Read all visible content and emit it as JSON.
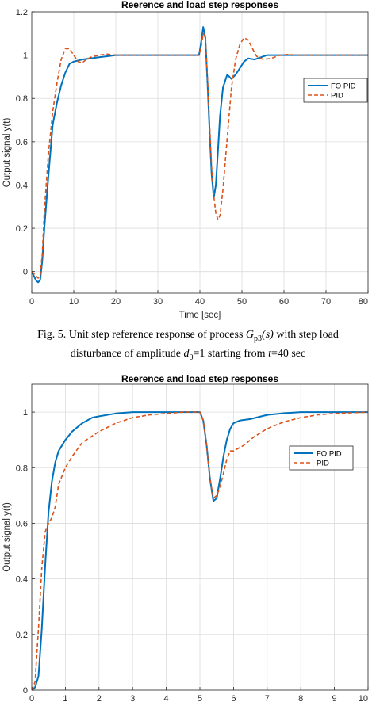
{
  "caption": {
    "line1_prefix": "Fig. 5.   Unit step reference response of process ",
    "proc_sym": "G",
    "proc_sub": "p3",
    "proc_arg": "(s)",
    "line1_suffix": " with step load",
    "line2_prefix": "disturbance of amplitude ",
    "amp_sym": "d",
    "amp_sub": "0",
    "line2_mid": "=1 starting from ",
    "time_sym": "t",
    "line2_suffix": "=40 sec"
  },
  "colors": {
    "fo_pid": "#0072BD",
    "pid": "#D95319",
    "grid": "#dcdcdc",
    "axis": "#262626"
  },
  "chart_data": [
    {
      "type": "line",
      "title": "Reerence and load step responses",
      "xlabel": "Time [sec]",
      "ylabel": "Output signal y(t)",
      "xlim": [
        0,
        80
      ],
      "ylim": [
        -0.1,
        1.2
      ],
      "xticks": [
        0,
        10,
        20,
        30,
        40,
        50,
        60,
        70,
        80
      ],
      "xtick_labels": [
        "0",
        "10",
        "20",
        "30",
        "40",
        "50",
        "60",
        "70",
        "80"
      ],
      "yticks": [
        0,
        0.2,
        0.4,
        0.6,
        0.8,
        1,
        1.2
      ],
      "ytick_labels": [
        "0",
        "0.2",
        "0.4",
        "0.6",
        "0.8",
        "1",
        "1.2"
      ],
      "grid": true,
      "legend_position": "right",
      "series": [
        {
          "name": "FO PID",
          "style": "solid",
          "color": "#0072BD",
          "x": [
            0,
            1,
            1.5,
            2,
            2.5,
            3,
            4,
            5,
            6,
            7,
            8,
            9,
            10,
            12,
            14,
            16,
            18,
            20,
            25,
            30,
            35,
            39.8,
            40.3,
            40.8,
            41.3,
            41.8,
            42.3,
            42.8,
            43.3,
            43.8,
            44.3,
            44.8,
            45.5,
            46.5,
            47.5,
            48.5,
            49.5,
            50.5,
            51.5,
            53,
            54.5,
            56,
            58,
            60,
            65,
            70,
            75,
            80
          ],
          "y": [
            0,
            -0.04,
            -0.05,
            -0.04,
            0.05,
            0.2,
            0.45,
            0.68,
            0.78,
            0.86,
            0.92,
            0.96,
            0.97,
            0.98,
            0.985,
            0.99,
            0.995,
            1,
            1,
            1,
            1,
            1,
            1.06,
            1.13,
            1.08,
            0.88,
            0.65,
            0.45,
            0.34,
            0.4,
            0.56,
            0.72,
            0.85,
            0.91,
            0.89,
            0.91,
            0.94,
            0.97,
            0.985,
            0.98,
            0.99,
            1.0,
            1.0,
            1,
            1,
            1,
            1,
            1
          ]
        },
        {
          "name": "PID",
          "style": "dashed",
          "color": "#D95319",
          "x": [
            0,
            1,
            1.5,
            2,
            2.5,
            3,
            4,
            5,
            6,
            7,
            8,
            9,
            10,
            11,
            12,
            13,
            14,
            16,
            18,
            20,
            22,
            25,
            30,
            35,
            39.8,
            40.3,
            40.8,
            41.3,
            41.8,
            42.3,
            42.8,
            43.3,
            43.8,
            44.3,
            44.8,
            45.5,
            46.5,
            47.5,
            48.5,
            49.5,
            50.5,
            51.5,
            52.5,
            53.5,
            55,
            57,
            59,
            61,
            63,
            65,
            70,
            75,
            80
          ],
          "y": [
            0,
            -0.02,
            -0.03,
            -0.02,
            0.08,
            0.28,
            0.55,
            0.74,
            0.87,
            0.98,
            1.03,
            1.03,
            1.0,
            0.97,
            0.965,
            0.98,
            0.99,
            1.0,
            1.005,
            1.0,
            1.0,
            1,
            1,
            1,
            1,
            1.04,
            1.1,
            1.08,
            0.9,
            0.68,
            0.48,
            0.35,
            0.27,
            0.24,
            0.26,
            0.38,
            0.62,
            0.85,
            0.98,
            1.05,
            1.08,
            1.07,
            1.03,
            0.995,
            0.98,
            0.985,
            1.0,
            1.003,
            1.0,
            1,
            1,
            1,
            1
          ]
        }
      ]
    },
    {
      "type": "line",
      "title": "Reerence and load step responses",
      "xlabel": "",
      "ylabel": "Output signal y(t)",
      "xlim": [
        0,
        10
      ],
      "ylim": [
        0,
        1.1
      ],
      "xticks": [
        0,
        1,
        2,
        3,
        4,
        5,
        6,
        7,
        8,
        9,
        10
      ],
      "xtick_labels": [
        "0",
        "1",
        "2",
        "3",
        "4",
        "5",
        "6",
        "7",
        "8",
        "9",
        "10"
      ],
      "yticks": [
        0,
        0.2,
        0.4,
        0.6,
        0.8,
        1
      ],
      "ytick_labels": [
        "0",
        "0.2",
        "0.4",
        "0.6",
        "0.8",
        "1"
      ],
      "grid": true,
      "legend_position": "right",
      "series": [
        {
          "name": "FO PID",
          "style": "solid",
          "color": "#0072BD",
          "x": [
            0,
            0.1,
            0.2,
            0.3,
            0.4,
            0.5,
            0.6,
            0.7,
            0.8,
            1.0,
            1.2,
            1.5,
            1.8,
            2.0,
            2.5,
            3.0,
            3.5,
            4.0,
            4.5,
            5.0,
            5.1,
            5.2,
            5.3,
            5.4,
            5.5,
            5.6,
            5.7,
            5.8,
            5.9,
            6.0,
            6.2,
            6.5,
            7.0,
            7.5,
            8.0,
            9.0,
            10.0
          ],
          "y": [
            0,
            0.01,
            0.05,
            0.22,
            0.45,
            0.64,
            0.75,
            0.82,
            0.86,
            0.9,
            0.93,
            0.96,
            0.98,
            0.985,
            0.995,
            1.0,
            1.0,
            1.0,
            1.0,
            1.0,
            0.97,
            0.88,
            0.76,
            0.68,
            0.69,
            0.76,
            0.84,
            0.9,
            0.94,
            0.96,
            0.97,
            0.975,
            0.99,
            0.996,
            1.0,
            1.0,
            1.0
          ]
        },
        {
          "name": "PID",
          "style": "dashed",
          "color": "#D95319",
          "x": [
            0,
            0.1,
            0.2,
            0.3,
            0.4,
            0.5,
            0.6,
            0.7,
            0.8,
            1.0,
            1.2,
            1.5,
            2.0,
            2.5,
            3.0,
            3.5,
            4.0,
            4.5,
            5.0,
            5.1,
            5.2,
            5.3,
            5.4,
            5.5,
            5.6,
            5.7,
            5.8,
            5.9,
            6.0,
            6.3,
            6.6,
            7.0,
            7.5,
            8.0,
            8.5,
            9.0,
            10.0
          ],
          "y": [
            0,
            0.03,
            0.22,
            0.44,
            0.57,
            0.6,
            0.62,
            0.66,
            0.74,
            0.8,
            0.84,
            0.89,
            0.93,
            0.96,
            0.98,
            0.99,
            0.995,
            1.0,
            1.0,
            0.97,
            0.88,
            0.76,
            0.69,
            0.7,
            0.73,
            0.78,
            0.83,
            0.86,
            0.86,
            0.88,
            0.91,
            0.94,
            0.965,
            0.98,
            0.99,
            0.995,
            1.0
          ]
        }
      ]
    }
  ]
}
